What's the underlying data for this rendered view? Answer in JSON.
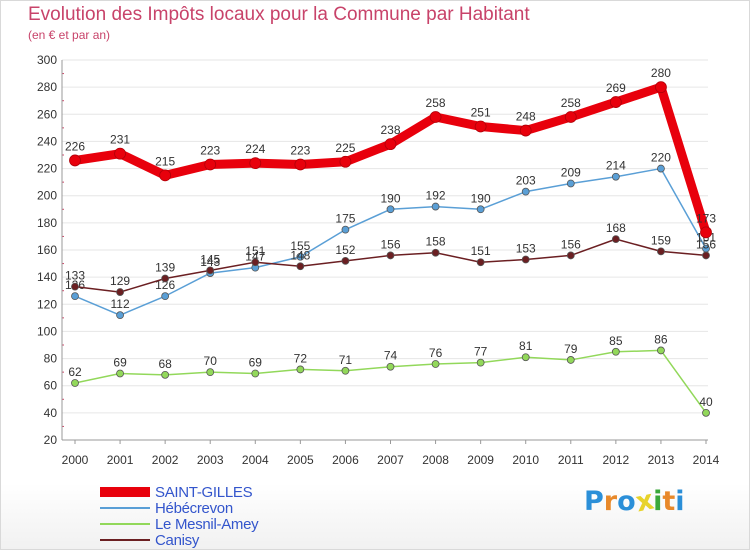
{
  "header": {
    "title": "Evolution des Impôts locaux pour la Commune par Habitant",
    "subtitle": "(en € et par an)"
  },
  "brand": {
    "text": "Proxiti",
    "letter_colors": [
      "#2b8fd8",
      "#e8892a",
      "#2b8fd8",
      "#e8d32a",
      "#3aa83a",
      "#e8892a",
      "#2b8fd8"
    ]
  },
  "colors": {
    "axis_text": "#333333",
    "grid": "#e6e6e6",
    "tick_marks": "#cc4466"
  },
  "chart_data": {
    "type": "line",
    "title": "Evolution des Impôts locaux pour la Commune par Habitant",
    "subtitle": "(en € et par an)",
    "x": [
      "2000",
      "2001",
      "2002",
      "2003",
      "2004",
      "2005",
      "2006",
      "2007",
      "2008",
      "2009",
      "2010",
      "2011",
      "2012",
      "2013",
      "2014"
    ],
    "ylim": [
      20,
      300
    ],
    "yticks": [
      20,
      40,
      60,
      80,
      100,
      120,
      140,
      160,
      180,
      200,
      220,
      240,
      260,
      280,
      300
    ],
    "grid": true,
    "legend_position": "bottom-left",
    "series": [
      {
        "name": "SAINT-GILLES",
        "color": "#e8000c",
        "emphasis": true,
        "values": [
          226,
          231,
          215,
          223,
          224,
          223,
          225,
          238,
          258,
          251,
          248,
          258,
          269,
          280,
          173
        ],
        "labels": [
          "226",
          "231",
          "215",
          "223",
          "224",
          "223",
          "225",
          "238",
          "258",
          "251",
          "248",
          "258",
          "269",
          "280",
          "173"
        ]
      },
      {
        "name": "Hébécrevon",
        "color": "#5a9fd6",
        "values": [
          126,
          112,
          126,
          143,
          147,
          155,
          175,
          190,
          192,
          190,
          203,
          209,
          214,
          220,
          161
        ],
        "labels": [
          "126",
          "112",
          "126",
          "143",
          "147",
          "155",
          "175",
          "190",
          "192",
          "190",
          "203",
          "209",
          "214",
          "220",
          "161"
        ]
      },
      {
        "name": "Le Mesnil-Amey",
        "color": "#92d85a",
        "values": [
          62,
          69,
          68,
          70,
          69,
          72,
          71,
          74,
          76,
          77,
          81,
          79,
          85,
          86,
          40
        ],
        "labels": [
          "62",
          "69",
          "68",
          "70",
          "69",
          "72",
          "71",
          "74",
          "76",
          "77",
          "81",
          "79",
          "85",
          "86",
          "40"
        ]
      },
      {
        "name": "Canisy",
        "color": "#6b1f22",
        "values": [
          133,
          129,
          139,
          145,
          151,
          148,
          152,
          156,
          158,
          151,
          153,
          156,
          168,
          159,
          156
        ],
        "labels": [
          "133",
          "129",
          "139",
          "145",
          "151",
          "148",
          "152",
          "156",
          "158",
          "151",
          "153",
          "156",
          "168",
          "159",
          "156"
        ]
      }
    ]
  },
  "legend": {
    "items": [
      {
        "label": "SAINT-GILLES",
        "color": "#e8000c",
        "thickness": 10
      },
      {
        "label": "Hébécrevon",
        "color": "#5a9fd6",
        "thickness": 2
      },
      {
        "label": "Le Mesnil-Amey",
        "color": "#92d85a",
        "thickness": 2
      },
      {
        "label": "Canisy",
        "color": "#6b1f22",
        "thickness": 2
      }
    ]
  }
}
